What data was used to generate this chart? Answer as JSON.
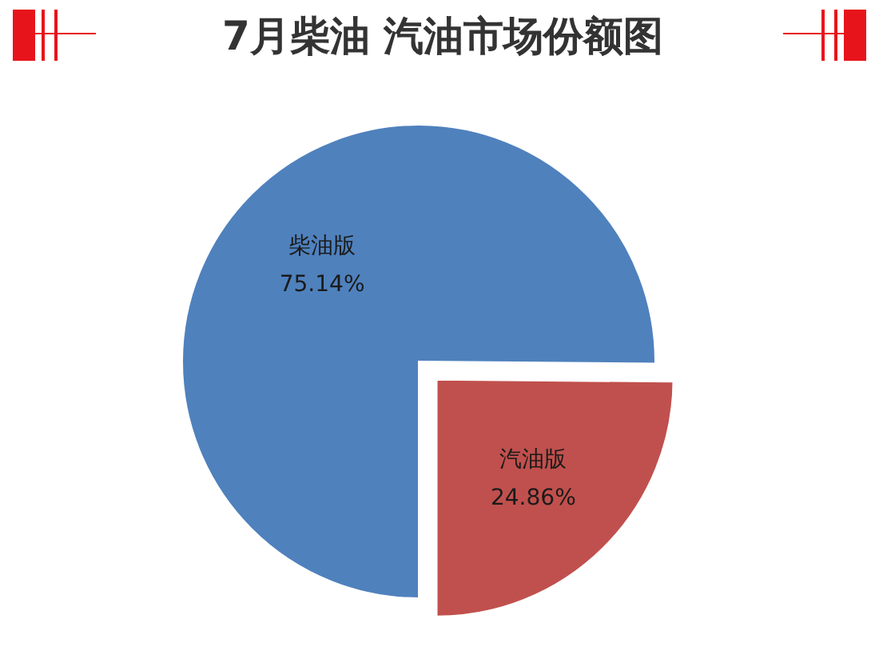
{
  "chart_data": {
    "type": "pie",
    "title": "7月柴油 汽油市场份额图",
    "categories": [
      "柴油版",
      "汽油版"
    ],
    "values": [
      75.14,
      24.86
    ],
    "colors": [
      "#4f81bd",
      "#c0504d"
    ],
    "value_labels": [
      "75.14%",
      "24.86%"
    ]
  }
}
